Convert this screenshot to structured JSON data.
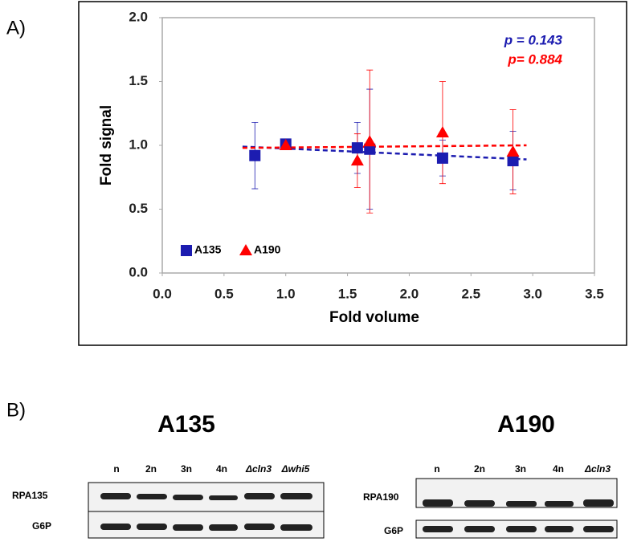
{
  "chart_data": {
    "type": "scatter",
    "panel_label": "A)",
    "xlabel": "Fold volume",
    "ylabel": "Fold signal",
    "xlim": [
      0,
      3.5
    ],
    "ylim": [
      0,
      2.0
    ],
    "xticks": [
      {
        "value": 0,
        "label": "0.0"
      },
      {
        "value": 0.5,
        "label": "0.5"
      },
      {
        "value": 1,
        "label": "1.0"
      },
      {
        "value": 1.5,
        "label": "1.5"
      },
      {
        "value": 2,
        "label": "2.0"
      },
      {
        "value": 2.5,
        "label": "2.5"
      },
      {
        "value": 3,
        "label": "3.0"
      },
      {
        "value": 3.5,
        "label": "3.5"
      }
    ],
    "yticks": [
      {
        "value": 0,
        "label": "0.0"
      },
      {
        "value": 0.5,
        "label": "0.5"
      },
      {
        "value": 1,
        "label": "1.0"
      },
      {
        "value": 1.5,
        "label": "1.5"
      },
      {
        "value": 2,
        "label": "2.0"
      }
    ],
    "legend": "lower left",
    "series": [
      {
        "name": "A135",
        "color": "#1c1cb0",
        "marker": "square",
        "x": [
          0.75,
          1.0,
          1.58,
          1.68,
          2.27,
          2.84
        ],
        "values": [
          0.92,
          1.01,
          0.98,
          0.97,
          0.9,
          0.88
        ],
        "errors": [
          0.26,
          0.02,
          0.2,
          0.47,
          0.14,
          0.23
        ],
        "trend_x": [
          0.65,
          2.95
        ],
        "trend_values": [
          0.99,
          0.89
        ]
      },
      {
        "name": "A190",
        "color": "#ff0000",
        "marker": "triangle",
        "x": [
          1.0,
          1.58,
          1.68,
          2.27,
          2.84
        ],
        "values": [
          1.0,
          0.88,
          1.03,
          1.1,
          0.95
        ],
        "errors": [
          0.02,
          0.21,
          0.56,
          0.4,
          0.33
        ],
        "trend_x": [
          0.65,
          2.95
        ],
        "trend_values": [
          0.98,
          1.0
        ]
      }
    ],
    "annotations": [
      {
        "text": "p = 0.143",
        "color": "#1c1cb0"
      },
      {
        "text": "p= 0.884",
        "color": "#ff0000"
      }
    ]
  },
  "blots": {
    "panel_label": "B)",
    "left": {
      "title": "A135",
      "lanes": [
        "n",
        "2n",
        "3n",
        "4n",
        "Δcln3",
        "Δwhi5"
      ],
      "rows": [
        "RPA135",
        "G6P"
      ]
    },
    "right": {
      "title": "A190",
      "lanes": [
        "n",
        "2n",
        "3n",
        "4n",
        "Δcln3"
      ],
      "rows": [
        "RPA190",
        "G6P"
      ]
    }
  }
}
